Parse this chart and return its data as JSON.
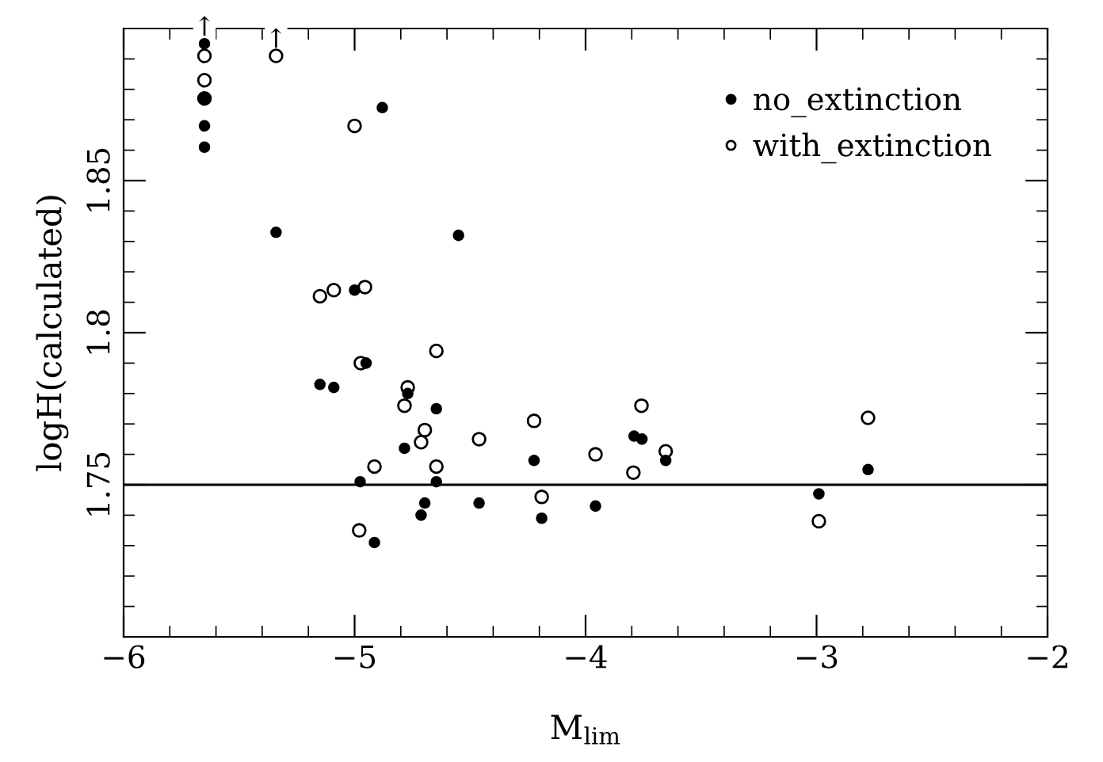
{
  "chart_data": {
    "type": "scatter",
    "xlabel": "M$_{lim}$",
    "ylabel": "logH(calculated)",
    "xlim": [
      -6,
      -2
    ],
    "xticks": [
      {
        "value": -6,
        "label": "−6"
      },
      {
        "value": -5,
        "label": "−5"
      },
      {
        "value": -4,
        "label": "−4"
      },
      {
        "value": -3,
        "label": "−3"
      },
      {
        "value": -2,
        "label": "−2"
      }
    ],
    "ylim": [
      1.7,
      1.9
    ],
    "yticks": [
      1.75,
      1.8,
      1.85
    ],
    "legend": "top right",
    "marker": "circle",
    "grid": false,
    "ref_lines": [
      {
        "axis": "y",
        "value": 1.75,
        "color": "#000000"
      }
    ],
    "annotations": [
      {
        "text": "↑",
        "x": -5.65,
        "y": 1.895
      },
      {
        "text": "↑",
        "x": -5.34,
        "y": 1.891
      }
    ],
    "series": [
      {
        "name": "no_extinction",
        "color": "#000000",
        "x": [
          -5.65,
          -5.65,
          -5.65,
          -5.65,
          -5.34,
          -4.88,
          -4.55,
          -5.0,
          -4.95,
          -5.15,
          -5.09,
          -4.77,
          -4.646,
          -4.784,
          -4.223,
          -4.976,
          -4.646,
          -4.696,
          -4.461,
          -4.712,
          -4.19,
          -4.914,
          -3.79,
          -3.756,
          -3.653,
          -2.777,
          -2.99,
          -3.957
        ],
        "values": [
          1.895,
          1.877,
          1.868,
          1.861,
          1.833,
          1.874,
          1.832,
          1.814,
          1.79,
          1.783,
          1.782,
          1.78,
          1.775,
          1.762,
          1.758,
          1.751,
          1.751,
          1.744,
          1.744,
          1.74,
          1.739,
          1.731,
          1.766,
          1.765,
          1.758,
          1.755,
          1.747,
          1.743
        ]
      },
      {
        "name": "with_extinction",
        "color": "#ffffff",
        "x": [
          -5.65,
          -5.65,
          -5.65,
          -5.34,
          -5.0,
          -5.15,
          -5.09,
          -4.955,
          -4.646,
          -4.973,
          -4.77,
          -4.784,
          -4.696,
          -4.712,
          -4.461,
          -4.223,
          -4.914,
          -4.646,
          -4.19,
          -4.98,
          -3.758,
          -2.777,
          -3.957,
          -3.653,
          -3.793,
          -2.99
        ],
        "values": [
          1.891,
          1.883,
          1.877,
          1.891,
          1.868,
          1.812,
          1.814,
          1.815,
          1.794,
          1.79,
          1.782,
          1.776,
          1.768,
          1.764,
          1.765,
          1.771,
          1.756,
          1.756,
          1.746,
          1.735,
          1.776,
          1.772,
          1.76,
          1.761,
          1.754,
          1.738
        ]
      }
    ]
  }
}
